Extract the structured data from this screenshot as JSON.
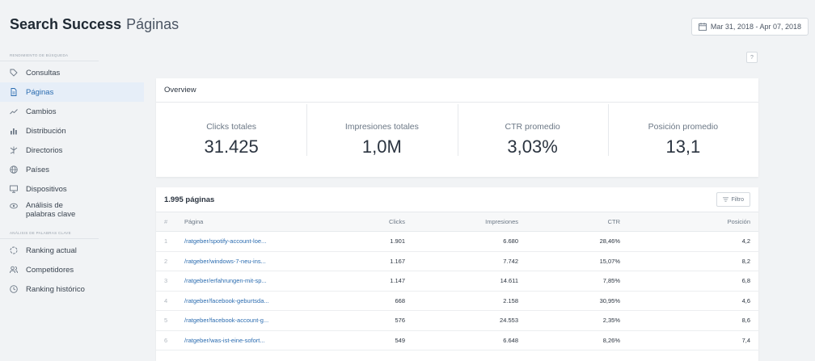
{
  "header": {
    "brand": "Search Success",
    "section": "Páginas",
    "date_range": "Mar 31, 2018 - Apr 07, 2018"
  },
  "sidebar": {
    "group1_heading": "RENDIMIENTO DE BÚSQUEDA",
    "group2_heading": "ANÁLISIS DE PALABRAS CLAVE",
    "items": [
      {
        "label": "Consultas",
        "icon": "tag-icon"
      },
      {
        "label": "Páginas",
        "icon": "document-icon",
        "active": true
      },
      {
        "label": "Cambios",
        "icon": "trend-icon"
      },
      {
        "label": "Distribución",
        "icon": "bar-chart-icon"
      },
      {
        "label": "Directorios",
        "icon": "directory-icon"
      },
      {
        "label": "Países",
        "icon": "globe-icon"
      },
      {
        "label": "Dispositivos",
        "icon": "monitor-icon"
      },
      {
        "label": "Análisis de palabras clave",
        "icon": "eye-icon"
      },
      {
        "label": "Ranking actual",
        "icon": "ranking-icon"
      },
      {
        "label": "Competidores",
        "icon": "competitors-icon"
      },
      {
        "label": "Ranking histórico",
        "icon": "clock-icon"
      }
    ]
  },
  "help_label": "?",
  "overview": {
    "title": "Overview",
    "metrics": [
      {
        "label": "Clicks totales",
        "value": "31.425"
      },
      {
        "label": "Impresiones totales",
        "value": "1,0M"
      },
      {
        "label": "CTR promedio",
        "value": "3,03%"
      },
      {
        "label": "Posición promedio",
        "value": "13,1"
      }
    ]
  },
  "table": {
    "count": "1.995",
    "count_word": "páginas",
    "filter_label": "Filtro",
    "columns": [
      "#",
      "Página",
      "Clicks",
      "Impresiones",
      "CTR",
      "Posición"
    ],
    "rows": [
      {
        "num": "1",
        "page": "/ratgeber/spotify-account-loe...",
        "clicks": "1.901",
        "impressions": "6.680",
        "ctr": "28,46%",
        "position": "4,2"
      },
      {
        "num": "2",
        "page": "/ratgeber/windows-7-neu-ins...",
        "clicks": "1.167",
        "impressions": "7.742",
        "ctr": "15,07%",
        "position": "8,2"
      },
      {
        "num": "3",
        "page": "/ratgeber/erfahrungen-mit-sp...",
        "clicks": "1.147",
        "impressions": "14.611",
        "ctr": "7,85%",
        "position": "6,8"
      },
      {
        "num": "4",
        "page": "/ratgeber/facebook-geburtsda...",
        "clicks": "668",
        "impressions": "2.158",
        "ctr": "30,95%",
        "position": "4,6"
      },
      {
        "num": "5",
        "page": "/ratgeber/facebook-account-g...",
        "clicks": "576",
        "impressions": "24.553",
        "ctr": "2,35%",
        "position": "8,6"
      },
      {
        "num": "6",
        "page": "/ratgeber/was-ist-eine-sofort...",
        "clicks": "549",
        "impressions": "6.648",
        "ctr": "8,26%",
        "position": "7,4"
      }
    ]
  },
  "colors": {
    "background": "#f1f3f5",
    "accent": "#2b6cb0",
    "active_bg": "#e6eef8"
  }
}
